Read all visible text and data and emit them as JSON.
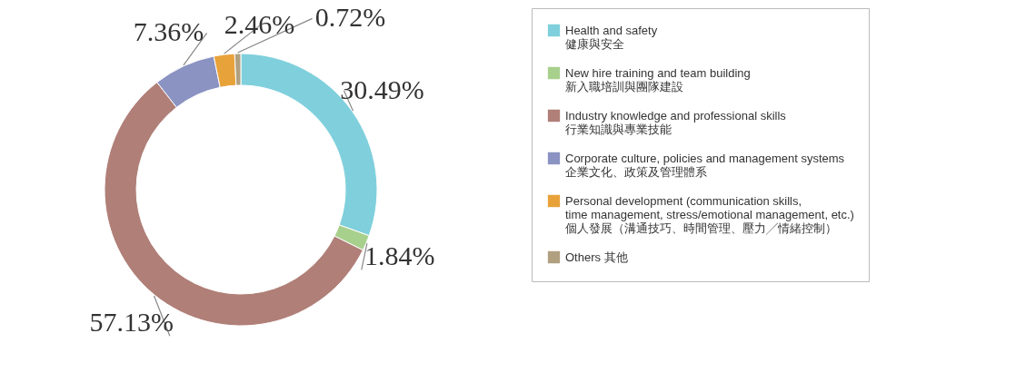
{
  "chart_data": {
    "type": "donut",
    "categories": [
      "Health and safety\n健康與安全",
      "New hire training and team building\n新入職培訓與團隊建設",
      "Industry knowledge and professional skills\n行業知識與專業技能",
      "Corporate culture, policies and management systems\n企業文化、政策及管理體系",
      "Personal development (communication skills,\ntime management, stress/emotional management, etc.)\n個人發展（溝通技巧、時間管理、壓力╱情緒控制）",
      "Others  其他"
    ],
    "values": [
      30.49,
      1.84,
      57.13,
      7.36,
      2.46,
      0.72
    ],
    "colors": [
      "#7fd0dc",
      "#a8d08d",
      "#b07f78",
      "#8a93c2",
      "#e8a23a",
      "#b0a080"
    ],
    "value_labels": [
      "30.49%",
      "1.84%",
      "57.13%",
      "7.36%",
      "2.46%",
      "0.72%"
    ],
    "legend": "right"
  }
}
